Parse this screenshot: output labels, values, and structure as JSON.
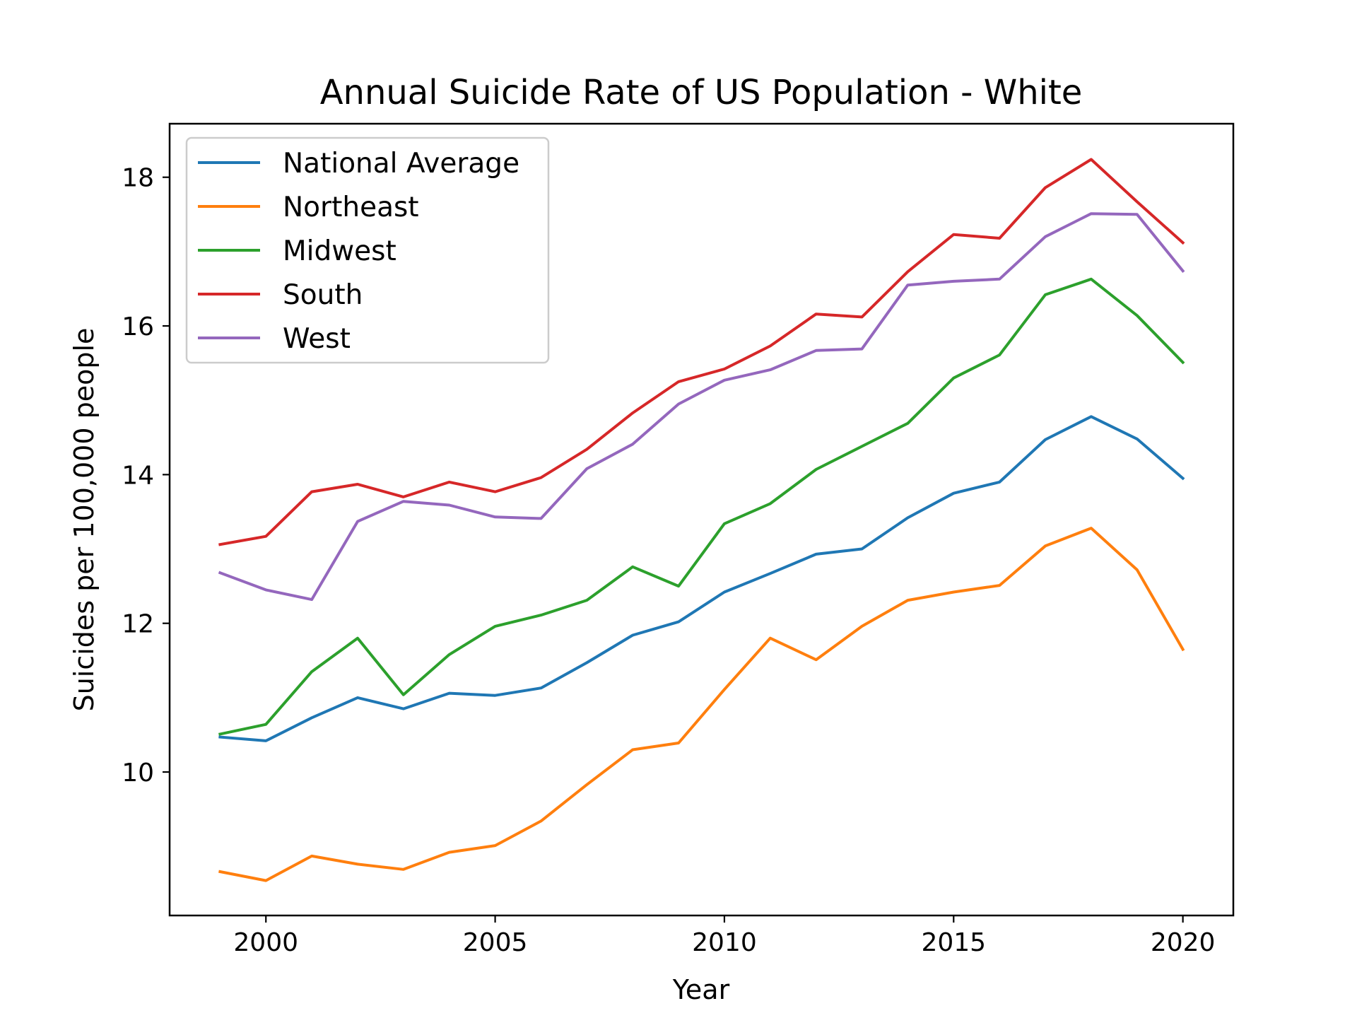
{
  "chart_data": {
    "type": "line",
    "title": "Annual Suicide Rate of US Population - White",
    "xlabel": "Year",
    "ylabel": "Suicides per 100,000 people",
    "xlim": [
      1997.9,
      2021.1
    ],
    "ylim": [
      8.07,
      18.72
    ],
    "xticks": [
      2000,
      2005,
      2010,
      2015,
      2020
    ],
    "yticks": [
      10,
      12,
      14,
      16,
      18
    ],
    "grid": false,
    "legend_position": "upper-left",
    "x": [
      1999,
      2000,
      2001,
      2002,
      2003,
      2004,
      2005,
      2006,
      2007,
      2008,
      2009,
      2010,
      2011,
      2012,
      2013,
      2014,
      2015,
      2016,
      2017,
      2018,
      2019,
      2020
    ],
    "series": [
      {
        "name": "National Average",
        "color": "#1f77b4",
        "values": [
          10.47,
          10.42,
          10.73,
          11.0,
          10.85,
          11.06,
          11.03,
          11.13,
          11.47,
          11.84,
          12.02,
          12.42,
          12.67,
          12.93,
          13.0,
          13.42,
          13.75,
          13.9,
          14.47,
          14.78,
          14.48,
          13.95
        ]
      },
      {
        "name": "Northeast",
        "color": "#ff7f0e",
        "values": [
          8.66,
          8.54,
          8.87,
          8.76,
          8.69,
          8.92,
          9.01,
          9.34,
          9.83,
          10.3,
          10.39,
          11.11,
          11.8,
          11.51,
          11.96,
          12.31,
          12.42,
          12.51,
          13.04,
          13.28,
          12.72,
          11.65
        ]
      },
      {
        "name": "Midwest",
        "color": "#2ca02c",
        "values": [
          10.51,
          10.64,
          11.35,
          11.8,
          11.04,
          11.58,
          11.96,
          12.11,
          12.31,
          12.76,
          12.5,
          13.34,
          13.61,
          14.07,
          14.38,
          14.69,
          15.3,
          15.61,
          16.42,
          16.63,
          16.14,
          15.51
        ]
      },
      {
        "name": "South",
        "color": "#d62728",
        "values": [
          13.06,
          13.17,
          13.77,
          13.87,
          13.7,
          13.9,
          13.77,
          13.96,
          14.34,
          14.83,
          15.25,
          15.42,
          15.73,
          16.16,
          16.12,
          16.73,
          17.23,
          17.18,
          17.86,
          18.24,
          17.67,
          17.12
        ]
      },
      {
        "name": "West",
        "color": "#9467bd",
        "values": [
          12.68,
          12.45,
          12.32,
          13.37,
          13.64,
          13.59,
          13.43,
          13.41,
          14.08,
          14.41,
          14.95,
          15.27,
          15.41,
          15.67,
          15.69,
          16.55,
          16.6,
          16.63,
          17.2,
          17.51,
          17.5,
          16.74
        ]
      }
    ]
  }
}
